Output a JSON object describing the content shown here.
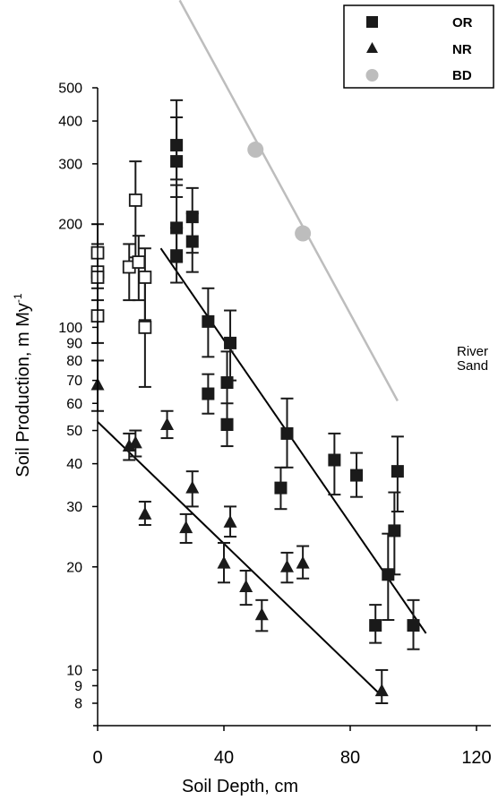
{
  "chart_data": {
    "type": "scatter",
    "title": "",
    "xlabel": "Soil Depth, cm",
    "ylabel": "Soil Production, m My",
    "ylabel_superscript": "-1",
    "xlim": [
      0,
      120
    ],
    "ylim": [
      8,
      500
    ],
    "yscale": "log",
    "x_ticks": [
      0,
      40,
      80,
      120
    ],
    "y_ticks": [
      8,
      9,
      10,
      20,
      30,
      40,
      50,
      60,
      70,
      80,
      90,
      100,
      200,
      300,
      400,
      500
    ],
    "grid": false,
    "legend_position": "top-right",
    "colors": {
      "OR": "#1a1a1a",
      "NR": "#1a1a1a",
      "BD": "#bdbdbd",
      "open": "#ffffff"
    },
    "series": [
      {
        "name": "OR",
        "marker": "square-filled",
        "points": [
          {
            "x": 25,
            "y": 340,
            "lo": 270,
            "hi": 460
          },
          {
            "x": 25,
            "y": 305,
            "lo": 240,
            "hi": 410
          },
          {
            "x": 25,
            "y": 195,
            "lo": 155,
            "hi": 260
          },
          {
            "x": 25,
            "y": 162,
            "lo": 135,
            "hi": 195
          },
          {
            "x": 30,
            "y": 210,
            "lo": 165,
            "hi": 255
          },
          {
            "x": 30,
            "y": 178,
            "lo": 145,
            "hi": 215
          },
          {
            "x": 35,
            "y": 104,
            "lo": 82,
            "hi": 130
          },
          {
            "x": 35,
            "y": 64,
            "lo": 56,
            "hi": 73
          },
          {
            "x": 42,
            "y": 90,
            "lo": 70,
            "hi": 112
          },
          {
            "x": 41,
            "y": 69,
            "lo": 54,
            "hi": 85
          },
          {
            "x": 41,
            "y": 52,
            "lo": 45,
            "hi": 60
          },
          {
            "x": 60,
            "y": 49,
            "lo": 39,
            "hi": 62
          },
          {
            "x": 58,
            "y": 34,
            "lo": 29.5,
            "hi": 39
          },
          {
            "x": 75,
            "y": 41,
            "lo": 32.5,
            "hi": 49
          },
          {
            "x": 82,
            "y": 37,
            "lo": 32,
            "hi": 43
          },
          {
            "x": 88,
            "y": 13.5,
            "lo": 12,
            "hi": 15.5
          },
          {
            "x": 92,
            "y": 19,
            "lo": 14,
            "hi": 25
          },
          {
            "x": 95,
            "y": 38,
            "lo": 29,
            "hi": 48
          },
          {
            "x": 94,
            "y": 25.5,
            "lo": 19,
            "hi": 33
          },
          {
            "x": 100,
            "y": 13.5,
            "lo": 11.5,
            "hi": 16
          }
        ]
      },
      {
        "name": "NR",
        "marker": "triangle-filled",
        "points": [
          {
            "x": 0,
            "y": 68,
            "lo": 57,
            "hi": 80
          },
          {
            "x": 10,
            "y": 45,
            "lo": 41,
            "hi": 49
          },
          {
            "x": 12,
            "y": 46,
            "lo": 42,
            "hi": 50
          },
          {
            "x": 15,
            "y": 28.5,
            "lo": 26.5,
            "hi": 31
          },
          {
            "x": 22,
            "y": 52,
            "lo": 47.5,
            "hi": 57
          },
          {
            "x": 28,
            "y": 26,
            "lo": 23.5,
            "hi": 28.5
          },
          {
            "x": 30,
            "y": 34,
            "lo": 30,
            "hi": 38
          },
          {
            "x": 40,
            "y": 20.5,
            "lo": 18,
            "hi": 23.5
          },
          {
            "x": 42,
            "y": 27,
            "lo": 24.5,
            "hi": 30
          },
          {
            "x": 47,
            "y": 17.5,
            "lo": 15.5,
            "hi": 19.5
          },
          {
            "x": 52,
            "y": 14.5,
            "lo": 13,
            "hi": 16
          },
          {
            "x": 60,
            "y": 20,
            "lo": 18,
            "hi": 22
          },
          {
            "x": 65,
            "y": 20.5,
            "lo": 18.5,
            "hi": 23
          },
          {
            "x": 90,
            "y": 8.7,
            "lo": 8,
            "hi": 10
          }
        ]
      },
      {
        "name": "BD",
        "marker": "circle-filled",
        "points": [
          {
            "x": 50,
            "y": 330
          },
          {
            "x": 65,
            "y": 188
          }
        ]
      },
      {
        "name": "",
        "marker": "square-open",
        "points": [
          {
            "x": 0,
            "y": 165,
            "lo": 120,
            "hi": 200
          },
          {
            "x": 0,
            "y": 145,
            "lo": 110,
            "hi": 175
          },
          {
            "x": 0,
            "y": 140,
            "lo": 110,
            "hi": 170
          },
          {
            "x": 0,
            "y": 108,
            "lo": 90,
            "hi": 130
          },
          {
            "x": 12,
            "y": 235,
            "lo": 160,
            "hi": 305
          },
          {
            "x": 10,
            "y": 150,
            "lo": 120,
            "hi": 175
          },
          {
            "x": 13,
            "y": 155,
            "lo": 120,
            "hi": 185
          },
          {
            "x": 15,
            "y": 140,
            "lo": 105,
            "hi": 170
          },
          {
            "x": 15,
            "y": 100,
            "lo": 67,
            "hi": 135
          }
        ]
      }
    ],
    "fit_lines": [
      {
        "series": "OR",
        "color": "#000000",
        "x0": 20,
        "y0": 170,
        "x1": 104,
        "y1": 12.8
      },
      {
        "series": "NR",
        "color": "#000000",
        "x0": 0,
        "y0": 53,
        "x1": 90,
        "y1": 8.4
      },
      {
        "series": "BD",
        "color": "#bdbdbd",
        "x0": 26,
        "y0": 900,
        "x1": 95,
        "y1": 61
      }
    ],
    "annotation": {
      "line1": "River",
      "line2": "Sand"
    },
    "legend": [
      {
        "label": "OR",
        "marker": "square-filled"
      },
      {
        "label": "NR",
        "marker": "triangle-filled"
      },
      {
        "label": "BD",
        "marker": "circle-filled"
      }
    ]
  }
}
